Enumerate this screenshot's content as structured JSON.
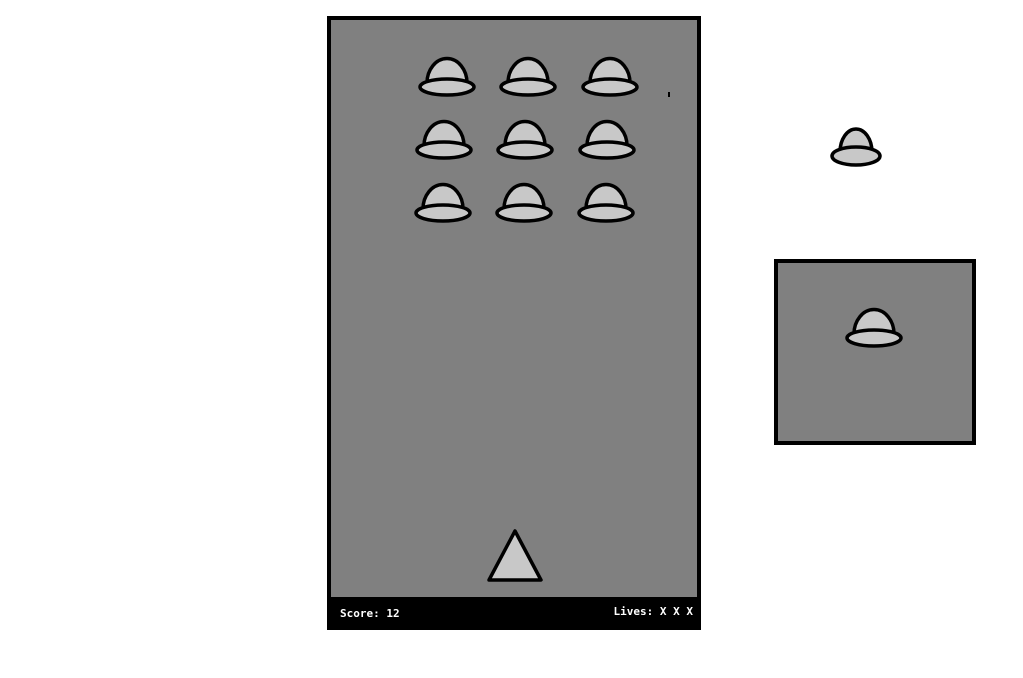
{
  "game": {
    "score_text": "Score: 12",
    "lives_text": "Lives: X X X",
    "colors": {
      "board_background": "#808080",
      "border": "#000000",
      "sprite_fill": "#c8c8c8",
      "status_bar_background": "#000000",
      "status_text": "#ffffff"
    },
    "invader_grid": {
      "rows": 3,
      "columns": 3,
      "icon": "saucer-icon"
    },
    "player": {
      "icon": "triangle-ship-icon"
    }
  },
  "side_panel": {
    "standalone_icon": "saucer-icon",
    "preview_icon": "saucer-icon"
  }
}
